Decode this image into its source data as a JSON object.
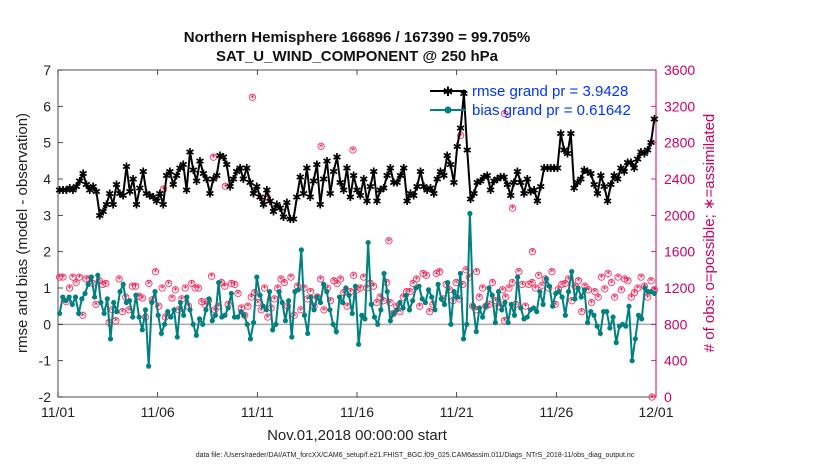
{
  "chart_data": {
    "type": "line",
    "title": "Northern Hemisphere 166896 / 167390 = 99.705%",
    "subtitle": "SAT_U_WIND_COMPONENT @ 250 hPa",
    "xlabel": "Nov.01,2018 00:00:00 start",
    "ylabel": "rmse and bias (model - observation)",
    "y2label": "# of obs: o=possible; ∗=assimilated",
    "xlim": [
      0,
      30
    ],
    "ylim": [
      -2,
      7
    ],
    "y2lim": [
      0,
      3600
    ],
    "x_ticks": [
      {
        "v": 0,
        "label": "11/01"
      },
      {
        "v": 5,
        "label": "11/06"
      },
      {
        "v": 10,
        "label": "11/11"
      },
      {
        "v": 15,
        "label": "11/16"
      },
      {
        "v": 20,
        "label": "11/21"
      },
      {
        "v": 25,
        "label": "11/26"
      },
      {
        "v": 30,
        "label": "12/01"
      }
    ],
    "y_ticks": [
      -2,
      -1,
      0,
      1,
      2,
      3,
      4,
      5,
      6,
      7
    ],
    "y2_ticks": [
      0,
      400,
      800,
      1200,
      1600,
      2000,
      2400,
      2800,
      3200,
      3600
    ],
    "footer": "data file: /Users/raeder/DAI/ATM_forcXX/CAM6_setup/f.e21.FHIST_BGC.f09_025.CAM6assim.011/Diags_NTrS_2018-11/obs_diag_output.nc",
    "series": [
      {
        "name": "rmse",
        "legend": "rmse grand pr = 3.9428",
        "color": "#000000",
        "marker": "star",
        "values": [
          3.7,
          3.7,
          3.7,
          3.75,
          3.7,
          3.8,
          3.95,
          4.15,
          3.85,
          3.7,
          3.8,
          3.65,
          3.0,
          3.1,
          3.3,
          3.6,
          3.3,
          3.85,
          3.6,
          3.55,
          4.35,
          3.65,
          4.0,
          3.3,
          3.75,
          4.2,
          3.6,
          3.55,
          3.5,
          3.4,
          3.6,
          3.3,
          4.1,
          4.2,
          3.85,
          4.1,
          4.3,
          4.4,
          3.7,
          4.75,
          4.25,
          3.95,
          4.5,
          4.15,
          4.0,
          3.6,
          4.0,
          4.1,
          4.65,
          4.6,
          4.4,
          3.8,
          4.0,
          4.2,
          4.3,
          4.0,
          4.3,
          3.9,
          3.6,
          3.8,
          3.5,
          3.3,
          3.7,
          3.4,
          3.1,
          3.3,
          3.2,
          2.95,
          3.35,
          2.9,
          2.9,
          3.5,
          4.05,
          3.6,
          4.3,
          3.5,
          3.95,
          4.4,
          3.3,
          4.0,
          4.5,
          3.6,
          4.2,
          4.6,
          3.9,
          3.7,
          4.3,
          3.5,
          4.1,
          3.7,
          3.55,
          4.0,
          3.4,
          3.8,
          4.2,
          3.4,
          3.7,
          3.75,
          4.1,
          4.3,
          3.9,
          3.9,
          4.1,
          4.3,
          3.4,
          3.6,
          3.55,
          3.8,
          4.2,
          3.8,
          3.7,
          3.75,
          3.6,
          4.0,
          4.2,
          4.1,
          4.65,
          4.4,
          3.9,
          4.9,
          5.4,
          6.35,
          4.8,
          3.45,
          3.6,
          3.9,
          3.95,
          4.05,
          4.1,
          3.7,
          3.95,
          4.0,
          4.05,
          4.05,
          3.85,
          3.55,
          3.9,
          4.2,
          3.9,
          3.6,
          4.0,
          3.65,
          3.7,
          3.4,
          3.8,
          4.3,
          4.3,
          4.3,
          4.3,
          4.3,
          5.25,
          4.8,
          4.7,
          5.25,
          3.75,
          3.9,
          4.0,
          4.25,
          4.2,
          4.15,
          3.85,
          3.6,
          4.1,
          3.8,
          3.4,
          3.85,
          4.1,
          4.0,
          4.3,
          4.2,
          4.45,
          4.45,
          4.3,
          4.55,
          4.75,
          4.7,
          4.8,
          5.0,
          5.65
        ]
      },
      {
        "name": "bias",
        "legend": "bias grand pr = 0.61642",
        "color": "#008080",
        "marker": "circle",
        "values": [
          0.3,
          0.75,
          0.65,
          0.75,
          0.55,
          0.75,
          0.3,
          0.7,
          0.85,
          1.1,
          1.3,
          0.75,
          1.35,
          0.6,
          0.3,
          0.7,
          -0.4,
          0.6,
          0.35,
          0.9,
          1.1,
          0.6,
          0.65,
          0.2,
          0.8,
          0.2,
          -0.15,
          0.4,
          -1.15,
          0.6,
          0.9,
          0.25,
          -0.25,
          0.0,
          0.35,
          0.2,
          0.4,
          -0.35,
          0.6,
          0.25,
          0.75,
          0.4,
          0.0,
          -0.3,
          0.15,
          0.0,
          0.4,
          0.7,
          0.1,
          0.25,
          1.15,
          0.2,
          0.25,
          0.45,
          0.85,
          0.2,
          0.2,
          0.35,
          0.25,
          0.0,
          -0.4,
          0.05,
          1.3,
          0.8,
          0.5,
          0.4,
          0.9,
          -0.15,
          0.0,
          0.9,
          0.6,
          0.1,
          0.65,
          -0.35,
          0.9,
          0.95,
          2.05,
          0.25,
          -0.25,
          0.75,
          0.4,
          0.75,
          0.6,
          1.1,
          0.9,
          0.4,
          0.0,
          -0.2,
          0.75,
          0.6,
          1.0,
          0.8,
          0.3,
          1.05,
          -0.55,
          0.25,
          0.15,
          2.25,
          0.55,
          0.2,
          0.0,
          0.4,
          1.4,
          0.9,
          0.1,
          0.3,
          0.4,
          0.6,
          0.45,
          0.8,
          0.4,
          0.65,
          1.0,
          1.05,
          0.7,
          0.6,
          0.95,
          0.75,
          0.4,
          1.1,
          0.7,
          0.55,
          1.15,
          0.0,
          0.9,
          0.75,
          1.4,
          -0.4,
          0.0,
          3.05,
          0.5,
          -0.2,
          0.45,
          0.2,
          0.5,
          1.0,
          0.8,
          0.05,
          0.9,
          0.4,
          0.6,
          0.05,
          0.55,
          0.25,
          1.3,
          0.45,
          0.15,
          0.2,
          0.4,
          0.45,
          0.35,
          0.9,
          0.55,
          1.25,
          1.05,
          0.5,
          0.85,
          0.9,
          0.75,
          0.25,
          0.9,
          1.45,
          0.7,
          1.0,
          0.75,
          0.95,
          0.05,
          0.35,
          0.25,
          -0.05,
          -0.25,
          0.35,
          0.35,
          -0.1,
          0.2,
          -0.5,
          -0.05,
          0.0,
          -0.05,
          0.5,
          -1.0,
          -0.4,
          0.25,
          0.15,
          1.0,
          0.9,
          0.9,
          0.85
        ]
      }
    ],
    "obs_assimilated": [
      1320,
      1320,
      1050,
      1200,
      1320,
      1260,
      1320,
      900,
      1300,
      1300,
      1250,
      1020,
      1280,
      1240,
      1250,
      820,
      960,
      840,
      1300,
      940,
      1100,
      960,
      1220,
      1220,
      1110,
      1090,
      880,
      1250,
      1070,
      1380,
      1000,
      1200,
      880,
      1250,
      1090,
      1180,
      960,
      1080,
      1200,
      1000,
      1250,
      1200,
      1200,
      1050,
      1020,
      1060,
      1330,
      960,
      1000,
      1260,
      1220,
      1020,
      1250,
      1240,
      1140,
      980,
      900,
      1000,
      1100,
      1150,
      1040,
      960,
      1200,
      880,
      980,
      1080,
      1200,
      1300,
      1260,
      1000,
      1320,
      900,
      1220,
      960,
      1200,
      1080,
      1160,
      1000,
      1100,
      1300,
      960,
      1200,
      1060,
      1280,
      1250,
      1300,
      1150,
      1000,
      1160,
      1340,
      1180,
      1200,
      1320,
      1200,
      1250,
      1220,
      1040,
      1100,
      1060,
      1260,
      1040,
      920,
      1000,
      940,
      1100,
      1160,
      1160,
      1250,
      1300,
      1000,
      1360,
      1340,
      940,
      1020,
      1360,
      1380,
      1080,
      1240,
      1180,
      1060,
      1260,
      1080,
      1240,
      1400,
      1320,
      1000,
      960,
      1100,
      1200,
      1000,
      1020,
      1260,
      1060,
      1000,
      1180,
      1100,
      1200,
      1260,
      1020,
      1380,
      1240,
      1000,
      1240,
      1260,
      1200,
      1340,
      1230,
      1300,
      1200,
      1380,
      1020,
      1190,
      1240,
      1250,
      1300,
      1060,
      1220,
      1280,
      940,
      1220,
      1180,
      1040,
      1160,
      1100,
      1320,
      1190,
      1360,
      1260,
      1100,
      1320,
      1180,
      1300,
      1280,
      1100,
      1150,
      1200,
      1320,
      1220,
      1100,
      1280,
      1180
    ],
    "obs_extra": [
      {
        "d": 9.75,
        "n": 3300
      },
      {
        "d": 7.8,
        "n": 2640
      },
      {
        "d": 8.4,
        "n": 2320
      },
      {
        "d": 5.3,
        "n": 2290
      },
      {
        "d": 10.5,
        "n": 2200
      },
      {
        "d": 13.2,
        "n": 2760
      },
      {
        "d": 14.8,
        "n": 2720
      },
      {
        "d": 22.4,
        "n": 3120
      },
      {
        "d": 20.2,
        "n": 2880
      },
      {
        "d": 22.8,
        "n": 2080
      },
      {
        "d": 21.0,
        "n": 1380
      },
      {
        "d": 22.4,
        "n": 840
      },
      {
        "d": 16.6,
        "n": 1720
      },
      {
        "d": 23.8,
        "n": 1600
      },
      {
        "d": 29.8,
        "n": 0
      }
    ]
  }
}
